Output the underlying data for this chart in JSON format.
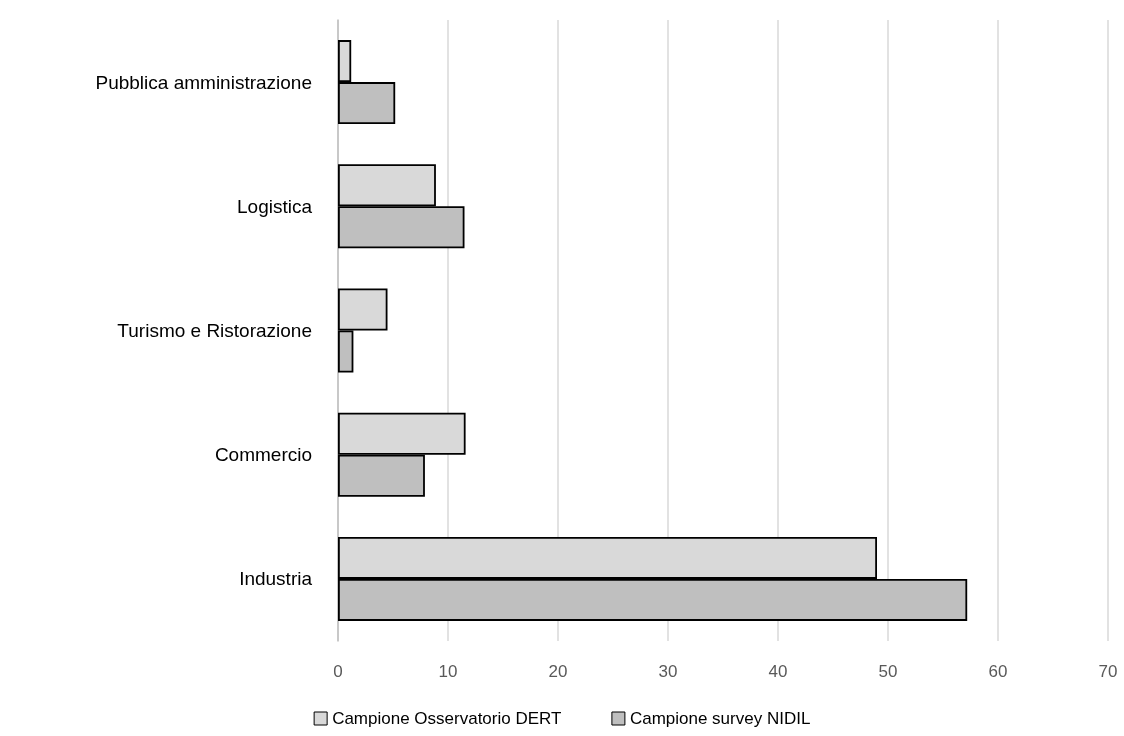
{
  "chart_data": {
    "type": "bar",
    "orientation": "horizontal",
    "categories": [
      "Pubblica amministrazione",
      "Logistica",
      "Turismo e Ristorazione",
      "Commercio",
      "Industria"
    ],
    "series": [
      {
        "name": "Campione Osservatorio DERT",
        "color": "#d9d9d9",
        "values": [
          1.2,
          8.9,
          4.5,
          11.6,
          49.0
        ]
      },
      {
        "name": "Campione survey NIDIL",
        "color": "#bfbfbf",
        "values": [
          5.2,
          11.5,
          1.4,
          7.9,
          57.2
        ]
      }
    ],
    "xlim": [
      0,
      70
    ],
    "xticks": [
      0,
      10,
      20,
      30,
      40,
      50,
      60,
      70
    ],
    "grid": "x",
    "legend": "bottom"
  }
}
